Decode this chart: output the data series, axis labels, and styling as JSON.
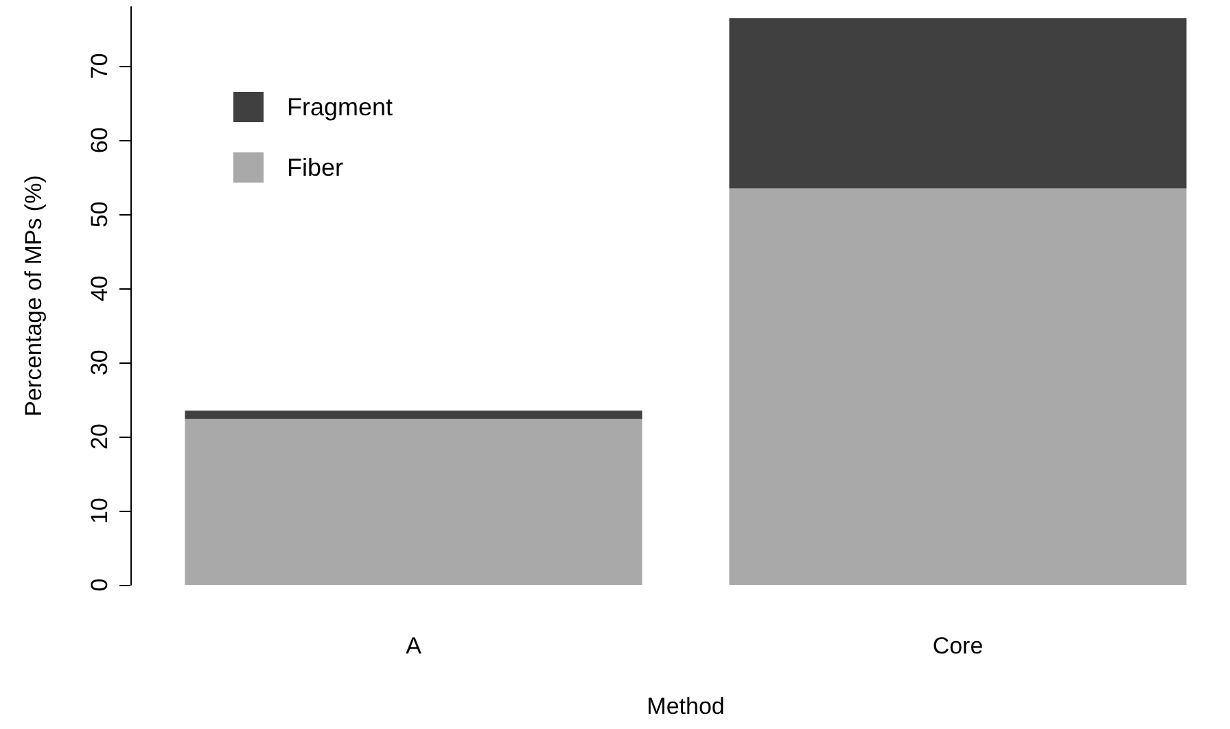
{
  "chart_data": {
    "type": "bar",
    "stacked": true,
    "xlabel": "Method",
    "ylabel": "Percentage of MPs (%)",
    "categories": [
      "A",
      "Core"
    ],
    "series": [
      {
        "name": "Fiber",
        "color": "#a9a9a9",
        "values": [
          22.4,
          53.5
        ]
      },
      {
        "name": "Fragment",
        "color": "#404040",
        "values": [
          1.1,
          23.0
        ]
      }
    ],
    "ylim": [
      0,
      78
    ],
    "yticks": [
      0,
      10,
      20,
      30,
      40,
      50,
      60,
      70
    ],
    "grid": false,
    "legend": "top left"
  }
}
